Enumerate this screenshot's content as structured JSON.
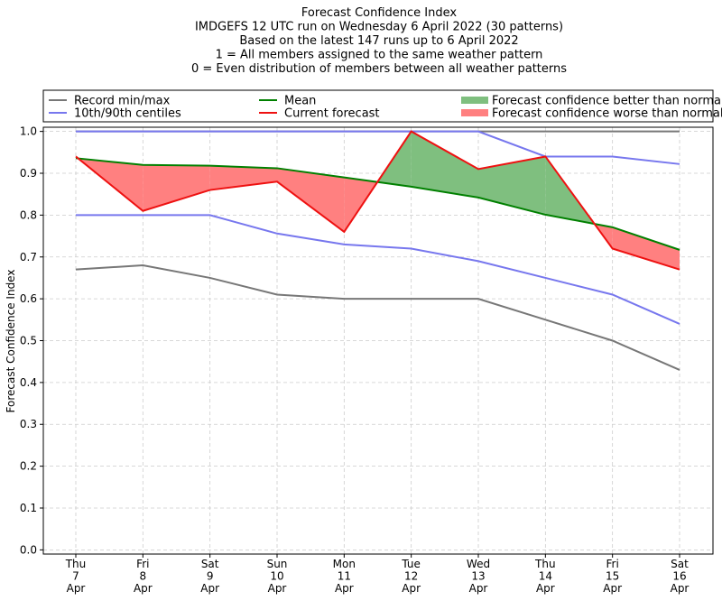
{
  "chart_data": {
    "type": "line",
    "title_lines": [
      "Forecast Confidence Index",
      "IMDGEFS 12 UTC run on Wednesday 6 April 2022 (30 patterns)",
      "Based on the latest 147 runs up to 6 April 2022",
      "1 = All members assigned to the same weather pattern",
      "0 = Even distribution of members between all weather patterns"
    ],
    "ylabel": "Forecast Confidence Index",
    "xlabel": "",
    "ylim": [
      -0.01,
      1.01
    ],
    "yticks": [
      "0.0",
      "0.1",
      "0.2",
      "0.3",
      "0.4",
      "0.5",
      "0.6",
      "0.7",
      "0.8",
      "0.9",
      "1.0"
    ],
    "grid": true,
    "legend_placement": "top",
    "categories": [
      [
        "Thu",
        "7",
        "Apr"
      ],
      [
        "Fri",
        "8",
        "Apr"
      ],
      [
        "Sat",
        "9",
        "Apr"
      ],
      [
        "Sun",
        "10",
        "Apr"
      ],
      [
        "Mon",
        "11",
        "Apr"
      ],
      [
        "Tue",
        "12",
        "Apr"
      ],
      [
        "Wed",
        "13",
        "Apr"
      ],
      [
        "Thu",
        "14",
        "Apr"
      ],
      [
        "Fri",
        "15",
        "Apr"
      ],
      [
        "Sat",
        "16",
        "Apr"
      ]
    ],
    "series": [
      {
        "key": "record_max",
        "legend": "record",
        "color": "#777777",
        "values": [
          1.0,
          1.0,
          1.0,
          1.0,
          1.0,
          1.0,
          1.0,
          1.0,
          1.0,
          1.0
        ]
      },
      {
        "key": "record_min",
        "legend": "record",
        "color": "#777777",
        "values": [
          0.67,
          0.68,
          0.65,
          0.61,
          0.6,
          0.6,
          0.6,
          0.55,
          0.5,
          0.43
        ]
      },
      {
        "key": "p90",
        "legend": "centiles",
        "color": "#7777ee",
        "values": [
          1.0,
          1.0,
          1.0,
          1.0,
          1.0,
          1.0,
          1.0,
          0.94,
          0.94,
          0.922
        ]
      },
      {
        "key": "p10",
        "legend": "centiles",
        "color": "#7777ee",
        "values": [
          0.8,
          0.8,
          0.8,
          0.756,
          0.73,
          0.72,
          0.69,
          0.65,
          0.61,
          0.54
        ]
      },
      {
        "key": "mean",
        "legend": "mean",
        "color": "#008000",
        "values": [
          0.936,
          0.92,
          0.918,
          0.912,
          0.89,
          0.868,
          0.842,
          0.801,
          0.771,
          0.717
        ]
      },
      {
        "key": "current",
        "legend": "current",
        "color": "#ee1111",
        "values": [
          0.94,
          0.81,
          0.86,
          0.88,
          0.76,
          1.0,
          0.91,
          0.94,
          0.72,
          0.67
        ]
      }
    ],
    "fill_colors": {
      "better": "#7fbf7f",
      "worse": "#ff8080"
    },
    "legend": [
      {
        "key": "record",
        "type": "line",
        "color": "#777777",
        "label": "Record min/max"
      },
      {
        "key": "centiles",
        "type": "line",
        "color": "#7777ee",
        "label": "10th/90th centiles"
      },
      {
        "key": "mean",
        "type": "line",
        "color": "#008000",
        "label": "Mean"
      },
      {
        "key": "current",
        "type": "line",
        "color": "#ee1111",
        "label": "Current forecast"
      },
      {
        "key": "better",
        "type": "patch",
        "color": "#7fbf7f",
        "label": "Forecast confidence better than normal"
      },
      {
        "key": "worse",
        "type": "patch",
        "color": "#ff8080",
        "label": "Forecast confidence worse than normal"
      }
    ]
  }
}
